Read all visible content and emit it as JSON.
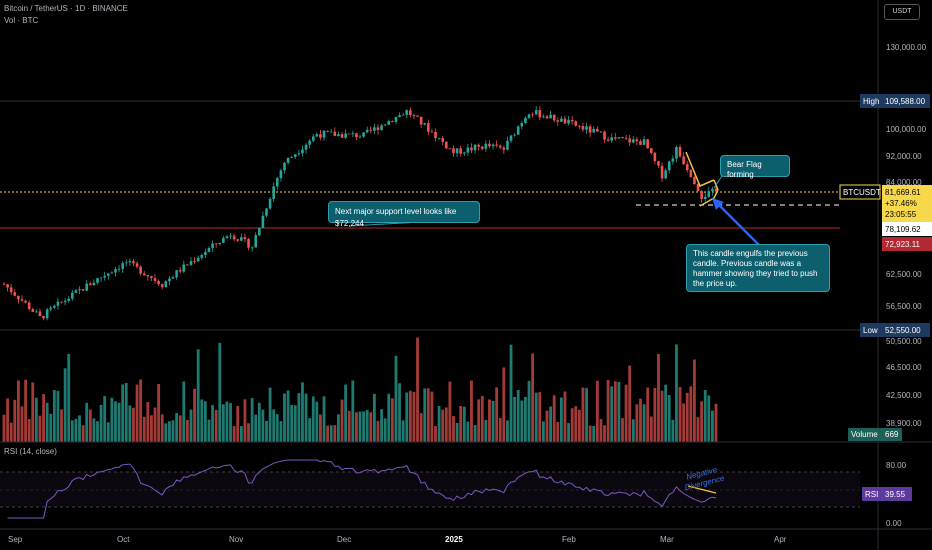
{
  "header": {
    "title": "Bitcoin / TetherUS · 1D · BINANCE",
    "volume_label": "Vol · BTC",
    "currency": "USDT"
  },
  "price_scale": {
    "ticks": [
      "130,000.00",
      "100,000.00",
      "92,000.00",
      "84,000.00",
      "62,500.00",
      "56,500.00",
      "50,500.00",
      "46,500.00",
      "42,500.00",
      "38,900.00"
    ],
    "high": {
      "label": "High",
      "value": "109,588.00"
    },
    "low": {
      "label": "Low",
      "value": "52,550.00"
    },
    "symbol": "BTCUSDT",
    "last_price": "81,669.61",
    "change": "+37.46%",
    "countdown": "23:05:55",
    "dashed_level": "78,109.62",
    "support_level": "72,923.11",
    "volume": {
      "label": "Volume",
      "value": "669"
    }
  },
  "rsi": {
    "label": "RSI (14, close)",
    "ticks": [
      "80.00",
      "0.00"
    ],
    "name": "RSI",
    "value": "39.55",
    "divergence_note": "Negative Divergence"
  },
  "x_axis": [
    "Sep",
    "Oct",
    "Nov",
    "Dec",
    "2025",
    "Feb",
    "Mar",
    "Apr"
  ],
  "annotations": {
    "bear_flag": "Bear Flag forming",
    "support": "Next major support level looks like $72,244",
    "engulf": "This candle engulfs the previous candle. Previous candle was a hammer showing they tried to push the price up."
  },
  "colors": {
    "up": "#26a69a",
    "down": "#ef5350",
    "vol_up": "#1f7a72",
    "vol_down": "#a33b38",
    "rsi": "#7e57c2",
    "support": "#b22833",
    "price_line": "#f7d84b",
    "annotation": "#f5c542",
    "arrow": "#2962ff",
    "callout": "#0e5f6d"
  },
  "chart_data": {
    "type": "candlestick",
    "key_points": [
      {
        "x": "2024-08-27",
        "y": 60500
      },
      {
        "x": "2024-09-06",
        "y": 54500
      },
      {
        "x": "2024-09-30",
        "y": 65000
      },
      {
        "x": "2024-10-10",
        "y": 60500
      },
      {
        "x": "2024-10-29",
        "y": 71500
      },
      {
        "x": "2024-11-04",
        "y": 68500
      },
      {
        "x": "2024-11-13",
        "y": 90000
      },
      {
        "x": "2024-11-22",
        "y": 98500
      },
      {
        "x": "2024-12-05",
        "y": 98000
      },
      {
        "x": "2024-12-17",
        "y": 106000
      },
      {
        "x": "2024-12-30",
        "y": 93000
      },
      {
        "x": "2025-01-08",
        "y": 95000
      },
      {
        "x": "2025-01-13",
        "y": 94000
      },
      {
        "x": "2025-01-20",
        "y": 106000
      },
      {
        "x": "2025-01-31",
        "y": 102000
      },
      {
        "x": "2025-02-12",
        "y": 97000
      },
      {
        "x": "2025-02-21",
        "y": 96000
      },
      {
        "x": "2025-02-26",
        "y": 86000
      },
      {
        "x": "2025-03-02",
        "y": 94000
      },
      {
        "x": "2025-03-09",
        "y": 80500
      },
      {
        "x": "2025-03-13",
        "y": 81670
      }
    ],
    "y_high": 109588,
    "y_low": 52550,
    "last": 81669.61,
    "rsi_overbought": 70,
    "rsi_oversold": 30
  }
}
